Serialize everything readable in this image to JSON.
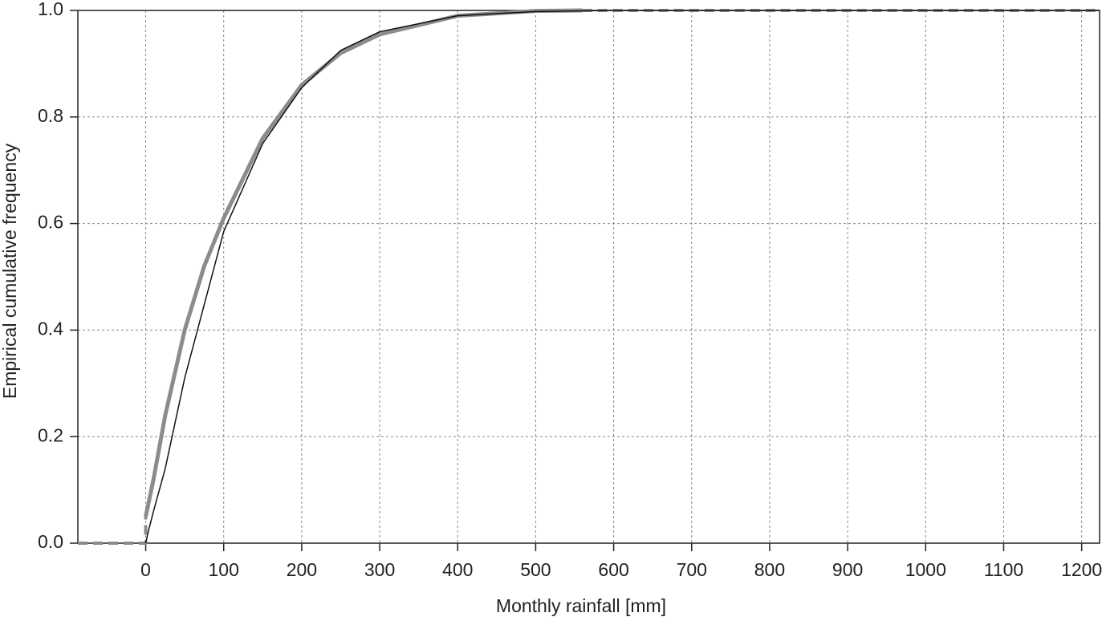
{
  "chart_data": {
    "type": "line",
    "x_label": "Monthly rainfall [mm]",
    "y_label": "Empirical cumulative frequency",
    "xlim": [
      -87,
      1223
    ],
    "ylim": [
      0,
      1
    ],
    "xticks": [
      0,
      100,
      200,
      300,
      400,
      500,
      600,
      700,
      800,
      900,
      1000,
      1100,
      1200
    ],
    "yticks": [
      {
        "value": 0,
        "label": "0.0"
      },
      0.2,
      0.4,
      0.6,
      0.8,
      {
        "value": 1,
        "label": "1.0"
      }
    ],
    "grid": true,
    "series": [
      {
        "color": "#8c8c8c",
        "width": 5,
        "dashed": false,
        "x": [
          0,
          10,
          25,
          50,
          75,
          100,
          150,
          200,
          250,
          300,
          400,
          500,
          560
        ],
        "values": [
          0.05,
          0.12,
          0.24,
          0.4,
          0.52,
          0.61,
          0.76,
          0.86,
          0.92,
          0.955,
          0.99,
          0.999,
          1
        ]
      },
      {
        "color": "#8c8c8c",
        "width": 4,
        "dashed": true,
        "x": [
          -87,
          0,
          0,
          300,
          560,
          1223
        ],
        "values": [
          0,
          0,
          0.05,
          null,
          1,
          1
        ]
      },
      {
        "color": "#111111",
        "width": 1.5,
        "dashed": false,
        "x": [
          0,
          3,
          10,
          25,
          50,
          100,
          150,
          200,
          250,
          300,
          400,
          500,
          600,
          1223
        ],
        "values": [
          0,
          0.02,
          0.06,
          0.14,
          0.31,
          0.585,
          0.75,
          0.855,
          0.925,
          0.96,
          0.99,
          0.998,
          1,
          1
        ]
      }
    ]
  }
}
